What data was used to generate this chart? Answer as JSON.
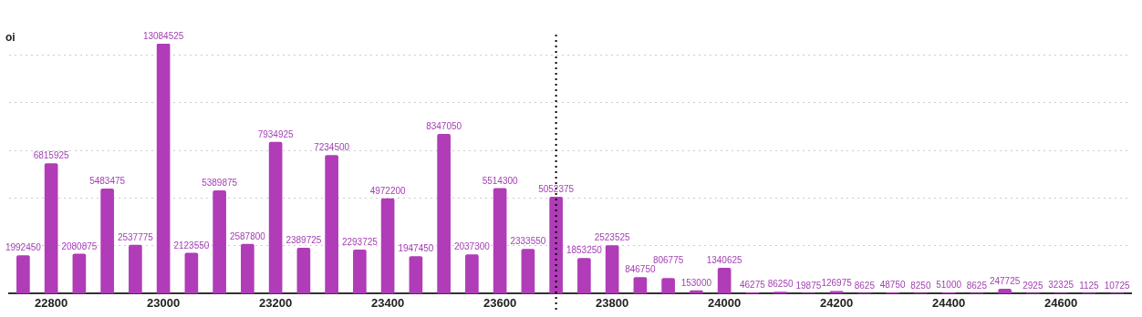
{
  "chart_data": {
    "type": "bar",
    "ylabel": "oi",
    "x": [
      22750,
      22800,
      22850,
      22900,
      22950,
      23000,
      23050,
      23100,
      23150,
      23200,
      23250,
      23300,
      23350,
      23400,
      23450,
      23500,
      23550,
      23600,
      23650,
      23700,
      23750,
      23800,
      23850,
      23900,
      23950,
      24000,
      24050,
      24100,
      24150,
      24200,
      24250,
      24300,
      24350,
      24400,
      24450,
      24500,
      24550,
      24600,
      24650,
      24700
    ],
    "values": [
      1992450,
      6815925,
      2080875,
      5483475,
      2537775,
      13084525,
      2123550,
      5389875,
      2587800,
      7934925,
      2389725,
      7234500,
      2293725,
      4972200,
      1947450,
      8347050,
      2037300,
      5514300,
      2333550,
      5052375,
      1853250,
      2523525,
      846750,
      806775,
      153000,
      1340625,
      46275,
      86250,
      19875,
      126975,
      8625,
      48750,
      8250,
      51000,
      8625,
      247725,
      2925,
      32325,
      1125,
      10725
    ],
    "color": "#b03cb8",
    "xlim": [
      22725,
      24725
    ],
    "xticks": [
      22800,
      23000,
      23200,
      23400,
      23600,
      23800,
      24000,
      24200,
      24400,
      24600
    ],
    "ylim": [
      0,
      13084525
    ],
    "yticks": [
      {
        "value": 0,
        "label": null
      },
      {
        "value": 2500000,
        "label": null
      },
      {
        "value": 5000000,
        "label": null
      },
      {
        "value": 7500000,
        "label": null
      },
      {
        "value": 10000000,
        "label": null
      },
      {
        "value": 12500000,
        "label": null
      }
    ],
    "tick_labels": "x",
    "grid": "y",
    "legend": false,
    "data_labels": true,
    "ref_lines": [
      {
        "axis": "x",
        "value": 23700,
        "color": "#000000",
        "line_style": "dotted"
      }
    ]
  }
}
